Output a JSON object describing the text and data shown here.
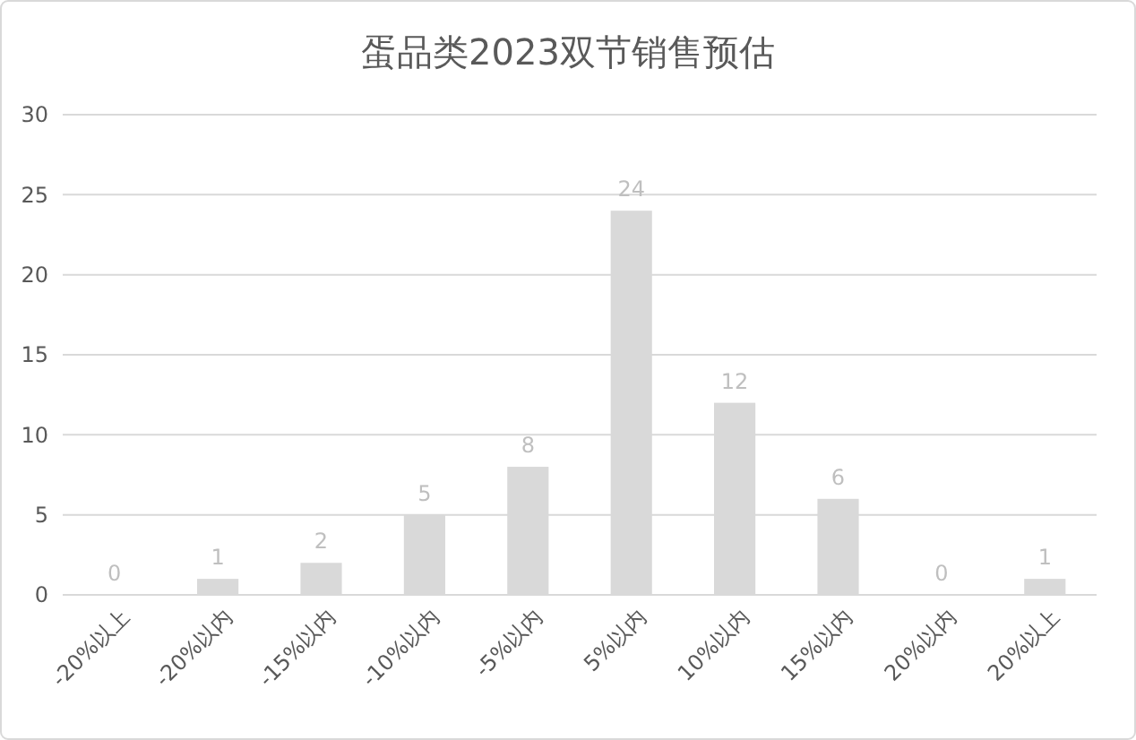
{
  "chart_data": {
    "type": "bar",
    "title": "蛋品类2023双节销售预估",
    "categories": [
      "-20%以上",
      "-20%以内",
      "-15%以内",
      "-10%以内",
      "-5%以内",
      "5%以内",
      "10%以内",
      "15%以内",
      "20%以内",
      "20%以上"
    ],
    "values": [
      0,
      1,
      2,
      5,
      8,
      24,
      12,
      6,
      0,
      1
    ],
    "color": "#d9d9d9",
    "ylim": [
      0,
      30
    ],
    "yticks": [
      0,
      5,
      10,
      15,
      20,
      25,
      30
    ],
    "grid": "y",
    "data_labels": true
  }
}
